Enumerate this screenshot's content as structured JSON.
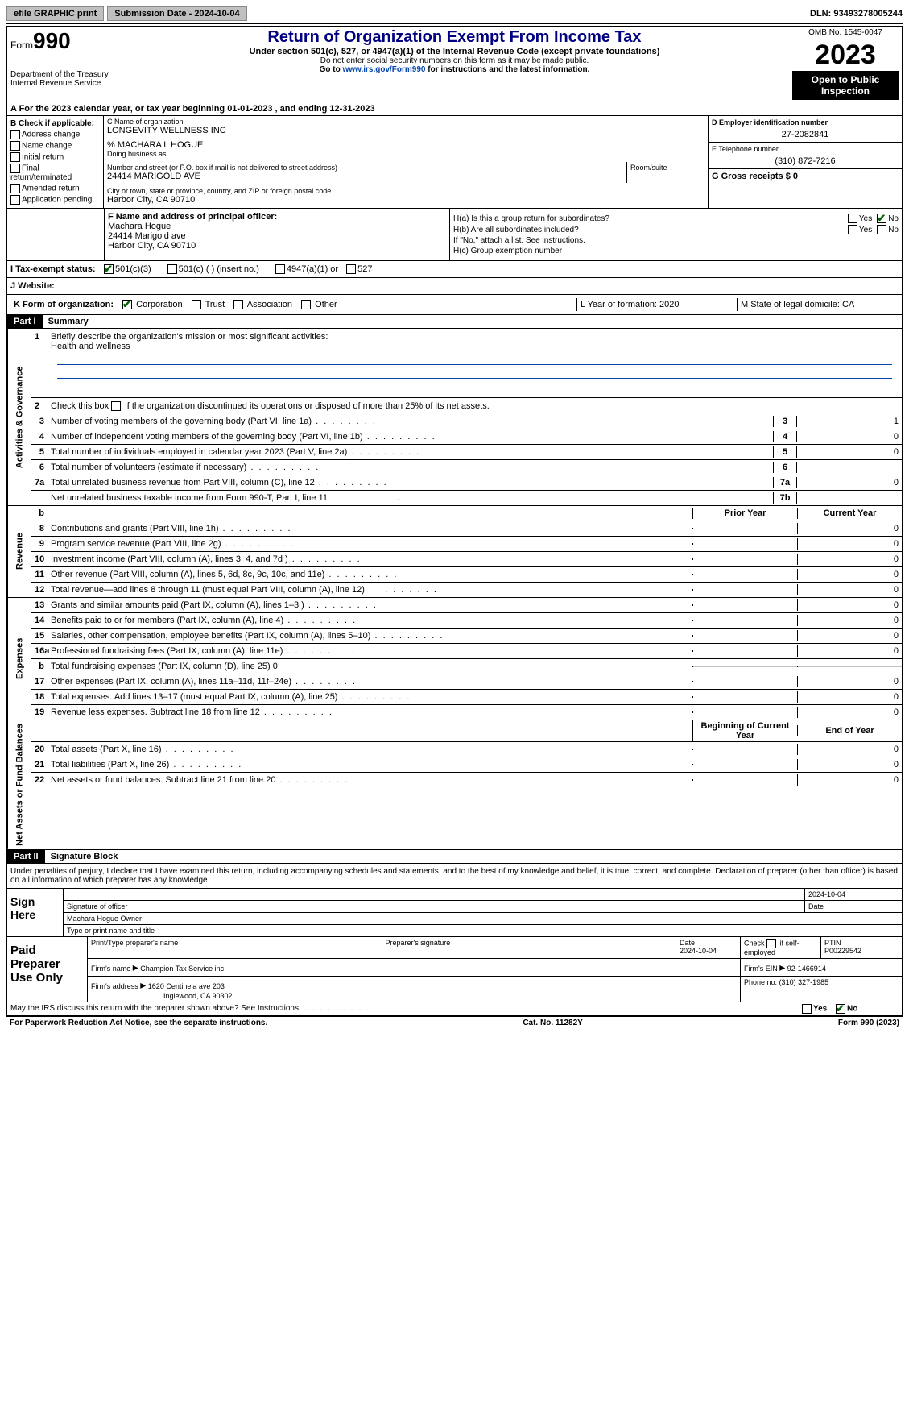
{
  "topbar": {
    "efile": "efile GRAPHIC print",
    "submission": "Submission Date - 2024-10-04",
    "dln": "DLN: 93493278005244"
  },
  "header": {
    "form_label": "Form",
    "form_num": "990",
    "dept": "Department of the Treasury\nInternal Revenue Service",
    "title": "Return of Organization Exempt From Income Tax",
    "subtitle": "Under section 501(c), 527, or 4947(a)(1) of the Internal Revenue Code (except private foundations)",
    "note1": "Do not enter social security numbers on this form as it may be made public.",
    "note2_pre": "Go to ",
    "note2_link": "www.irs.gov/Form990",
    "note2_post": " for instructions and the latest information.",
    "omb": "OMB No. 1545-0047",
    "year": "2023",
    "inspect": "Open to Public Inspection"
  },
  "rowA": "A For the 2023 calendar year, or tax year beginning 01-01-2023   , and ending 12-31-2023",
  "boxB": {
    "label": "B Check if applicable:",
    "options": [
      "Address change",
      "Name change",
      "Initial return",
      "Final return/terminated",
      "Amended return",
      "Application pending"
    ]
  },
  "boxC": {
    "name_label": "C Name of organization",
    "name": "LONGEVITY WELLNESS INC",
    "care_of": "% MACHARA L HOGUE",
    "dba_label": "Doing business as",
    "addr_label": "Number and street (or P.O. box if mail is not delivered to street address)",
    "addr": "24414 MARIGOLD AVE",
    "room_label": "Room/suite",
    "city_label": "City or town, state or province, country, and ZIP or foreign postal code",
    "city": "Harbor City, CA  90710"
  },
  "boxD": {
    "label": "D Employer identification number",
    "value": "27-2082841"
  },
  "boxE": {
    "label": "E Telephone number",
    "value": "(310) 872-7216"
  },
  "boxG": {
    "label": "G Gross receipts $ 0"
  },
  "boxF": {
    "label": "F  Name and address of principal officer:",
    "name": "Machara Hogue",
    "addr1": "24414 Marigold ave",
    "addr2": "Harbor City, CA  90710"
  },
  "boxH": {
    "ha_label": "H(a)  Is this a group return for subordinates?",
    "hb_label": "H(b)  Are all subordinates included?",
    "hb_note": "If \"No,\" attach a list. See instructions.",
    "hc_label": "H(c)  Group exemption number",
    "yes": "Yes",
    "no": "No"
  },
  "boxI": {
    "label": "I  Tax-exempt status:",
    "o1": "501(c)(3)",
    "o2": "501(c) (  ) (insert no.)",
    "o3": "4947(a)(1) or",
    "o4": "527"
  },
  "boxJ": {
    "label": "J  Website:"
  },
  "boxK": {
    "label": "K Form of organization:",
    "o1": "Corporation",
    "o2": "Trust",
    "o3": "Association",
    "o4": "Other"
  },
  "boxL": {
    "label": "L Year of formation: 2020"
  },
  "boxM": {
    "label": "M State of legal domicile: CA"
  },
  "partI": {
    "header": "Part I",
    "title": "Summary"
  },
  "mission": {
    "label": "Briefly describe the organization's mission or most significant activities:",
    "text": "Health and wellness"
  },
  "line2": "Check this box      if the organization discontinued its operations or disposed of more than 25% of its net assets.",
  "gov_lines": [
    {
      "n": "3",
      "t": "Number of voting members of the governing body (Part VI, line 1a)",
      "r": "3",
      "v": "1"
    },
    {
      "n": "4",
      "t": "Number of independent voting members of the governing body (Part VI, line 1b)",
      "r": "4",
      "v": "0"
    },
    {
      "n": "5",
      "t": "Total number of individuals employed in calendar year 2023 (Part V, line 2a)",
      "r": "5",
      "v": "0"
    },
    {
      "n": "6",
      "t": "Total number of volunteers (estimate if necessary)",
      "r": "6",
      "v": ""
    },
    {
      "n": "7a",
      "t": "Total unrelated business revenue from Part VIII, column (C), line 12",
      "r": "7a",
      "v": "0"
    },
    {
      "n": "",
      "t": "Net unrelated business taxable income from Form 990-T, Part I, line 11",
      "r": "7b",
      "v": ""
    }
  ],
  "rev_hdr": {
    "n": "b",
    "t": "",
    "c1": "Prior Year",
    "c2": "Current Year"
  },
  "rev_lines": [
    {
      "n": "8",
      "t": "Contributions and grants (Part VIII, line 1h)",
      "c1": "",
      "c2": "0"
    },
    {
      "n": "9",
      "t": "Program service revenue (Part VIII, line 2g)",
      "c1": "",
      "c2": "0"
    },
    {
      "n": "10",
      "t": "Investment income (Part VIII, column (A), lines 3, 4, and 7d )",
      "c1": "",
      "c2": "0"
    },
    {
      "n": "11",
      "t": "Other revenue (Part VIII, column (A), lines 5, 6d, 8c, 9c, 10c, and 11e)",
      "c1": "",
      "c2": "0"
    },
    {
      "n": "12",
      "t": "Total revenue—add lines 8 through 11 (must equal Part VIII, column (A), line 12)",
      "c1": "",
      "c2": "0"
    }
  ],
  "exp_lines": [
    {
      "n": "13",
      "t": "Grants and similar amounts paid (Part IX, column (A), lines 1–3 )",
      "c1": "",
      "c2": "0"
    },
    {
      "n": "14",
      "t": "Benefits paid to or for members (Part IX, column (A), line 4)",
      "c1": "",
      "c2": "0"
    },
    {
      "n": "15",
      "t": "Salaries, other compensation, employee benefits (Part IX, column (A), lines 5–10)",
      "c1": "",
      "c2": "0"
    },
    {
      "n": "16a",
      "t": "Professional fundraising fees (Part IX, column (A), line 11e)",
      "c1": "",
      "c2": "0"
    },
    {
      "n": "b",
      "t": "Total fundraising expenses (Part IX, column (D), line 25) 0",
      "c1": "grey",
      "c2": "grey"
    },
    {
      "n": "17",
      "t": "Other expenses (Part IX, column (A), lines 11a–11d, 11f–24e)",
      "c1": "",
      "c2": "0"
    },
    {
      "n": "18",
      "t": "Total expenses. Add lines 13–17 (must equal Part IX, column (A), line 25)",
      "c1": "",
      "c2": "0"
    },
    {
      "n": "19",
      "t": "Revenue less expenses. Subtract line 18 from line 12",
      "c1": "",
      "c2": "0"
    }
  ],
  "na_hdr": {
    "c1": "Beginning of Current Year",
    "c2": "End of Year"
  },
  "na_lines": [
    {
      "n": "20",
      "t": "Total assets (Part X, line 16)",
      "c1": "",
      "c2": "0"
    },
    {
      "n": "21",
      "t": "Total liabilities (Part X, line 26)",
      "c1": "",
      "c2": "0"
    },
    {
      "n": "22",
      "t": "Net assets or fund balances. Subtract line 21 from line 20",
      "c1": "",
      "c2": "0"
    }
  ],
  "partII": {
    "header": "Part II",
    "title": "Signature Block"
  },
  "sig_decl": "Under penalties of perjury, I declare that I have examined this return, including accompanying schedules and statements, and to the best of my knowledge and belief, it is true, correct, and complete. Declaration of preparer (other than officer) is based on all information of which preparer has any knowledge.",
  "sign_here": "Sign Here",
  "sig": {
    "date1": "2024-10-04",
    "sig_label": "Signature of officer",
    "date_label": "Date",
    "name": "Machara Hogue  Owner",
    "name_label": "Type or print name and title"
  },
  "paid_prep": "Paid Preparer Use Only",
  "prep": {
    "h1": "Print/Type preparer's name",
    "h2": "Preparer's signature",
    "h3_label": "Date",
    "h3": "2024-10-04",
    "h4_label": "Check       if self-employed",
    "h5_label": "PTIN",
    "h5": "P00229542",
    "firm_name_label": "Firm's name",
    "firm_name": "Champion Tax Service inc",
    "firm_ein_label": "Firm's EIN",
    "firm_ein": "92-1466914",
    "firm_addr_label": "Firm's address",
    "firm_addr1": "1620 Centinela ave 203",
    "firm_addr2": "Inglewood, CA  90302",
    "phone_label": "Phone no.",
    "phone": "(310) 327-1985"
  },
  "discuss": {
    "text": "May the IRS discuss this return with the preparer shown above? See Instructions.",
    "yes": "Yes",
    "no": "No"
  },
  "footer": {
    "left": "For Paperwork Reduction Act Notice, see the separate instructions.",
    "mid": "Cat. No. 11282Y",
    "right": "Form 990 (2023)"
  },
  "vlabels": {
    "gov": "Activities & Governance",
    "rev": "Revenue",
    "exp": "Expenses",
    "na": "Net Assets or Fund Balances"
  }
}
